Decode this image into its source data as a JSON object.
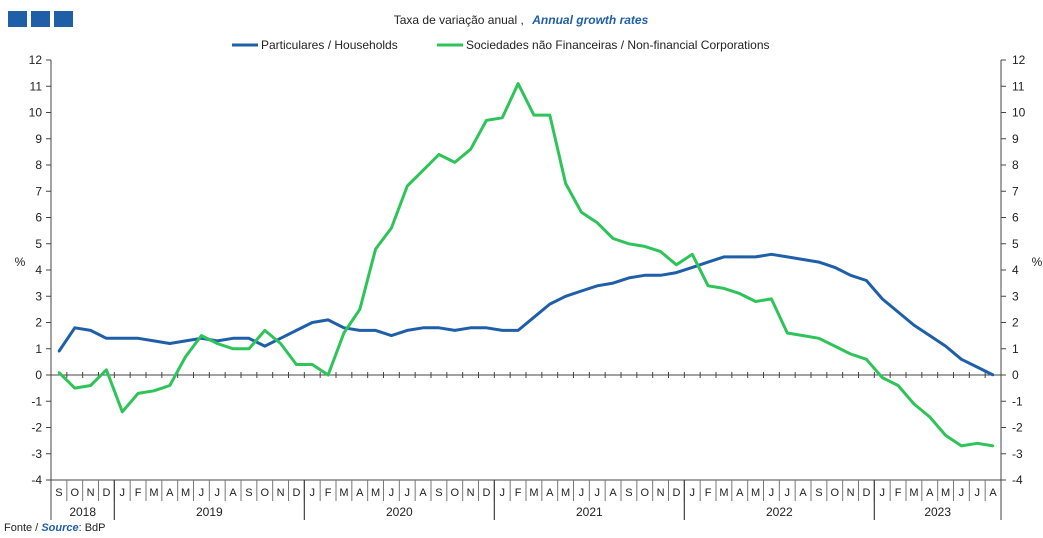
{
  "header": {
    "title_pt": "Taxa de variação anual ,",
    "title_en": "Annual growth rates"
  },
  "footer": {
    "source_prefix": "Fonte /",
    "source_en": "Source",
    "source_suffix": ": BdP"
  },
  "colors": {
    "logo": "#1f5fa8",
    "households": "#1f5fa8",
    "corporations": "#2ec45a"
  },
  "chart_data": {
    "type": "line",
    "title": "Taxa de variação anual , Annual growth rates",
    "ylabel_left": "%",
    "ylabel_right": "%",
    "ylim": [
      -4,
      12
    ],
    "yticks": [
      -4,
      -3,
      -2,
      -1,
      0,
      1,
      2,
      3,
      4,
      5,
      6,
      7,
      8,
      9,
      10,
      11,
      12
    ],
    "legend_position": "top-center",
    "grid": false,
    "categories": [
      "S",
      "O",
      "N",
      "D",
      "J",
      "F",
      "M",
      "A",
      "M",
      "J",
      "J",
      "A",
      "S",
      "O",
      "N",
      "D",
      "J",
      "F",
      "M",
      "A",
      "M",
      "J",
      "J",
      "A",
      "S",
      "O",
      "N",
      "D",
      "J",
      "F",
      "M",
      "A",
      "M",
      "J",
      "J",
      "A",
      "S",
      "O",
      "N",
      "D",
      "J",
      "F",
      "M",
      "A",
      "M",
      "J",
      "J",
      "A",
      "S",
      "O",
      "N",
      "D",
      "J",
      "F",
      "M",
      "A",
      "M",
      "J",
      "J",
      "A"
    ],
    "year_groups": [
      {
        "label": "2018",
        "start": 0,
        "count": 4
      },
      {
        "label": "2019",
        "start": 4,
        "count": 12
      },
      {
        "label": "2020",
        "start": 16,
        "count": 12
      },
      {
        "label": "2021",
        "start": 28,
        "count": 12
      },
      {
        "label": "2022",
        "start": 40,
        "count": 12
      },
      {
        "label": "2023",
        "start": 52,
        "count": 8
      }
    ],
    "series": [
      {
        "name": "Particulares / Households",
        "color": "#1f5fa8",
        "values": [
          0.9,
          1.8,
          1.7,
          1.4,
          1.4,
          1.4,
          1.3,
          1.2,
          1.3,
          1.4,
          1.3,
          1.4,
          1.4,
          1.1,
          1.4,
          1.7,
          2.0,
          2.1,
          1.8,
          1.7,
          1.7,
          1.5,
          1.7,
          1.8,
          1.8,
          1.7,
          1.8,
          1.8,
          1.7,
          1.7,
          2.2,
          2.7,
          3.0,
          3.2,
          3.4,
          3.5,
          3.7,
          3.8,
          3.8,
          3.9,
          4.1,
          4.3,
          4.5,
          4.5,
          4.5,
          4.6,
          4.5,
          4.4,
          4.3,
          4.1,
          3.8,
          3.6,
          2.9,
          2.4,
          1.9,
          1.5,
          1.1,
          0.6,
          0.3,
          0.0
        ]
      },
      {
        "name": "Sociedades não Financeiras / Non-financial Corporations",
        "color": "#2ec45a",
        "values": [
          0.1,
          -0.5,
          -0.4,
          0.2,
          -1.4,
          -0.7,
          -0.6,
          -0.4,
          0.7,
          1.5,
          1.2,
          1.0,
          1.0,
          1.7,
          1.2,
          0.4,
          0.4,
          0.0,
          1.6,
          2.5,
          4.8,
          5.6,
          7.2,
          7.8,
          8.4,
          8.1,
          8.6,
          9.7,
          9.8,
          11.1,
          9.9,
          9.9,
          7.3,
          6.2,
          5.8,
          5.2,
          5.0,
          4.9,
          4.7,
          4.2,
          4.6,
          3.4,
          3.3,
          3.1,
          2.8,
          2.9,
          1.6,
          1.5,
          1.4,
          1.1,
          0.8,
          0.6,
          -0.1,
          -0.4,
          -1.1,
          -1.6,
          -2.3,
          -2.7,
          -2.6,
          -2.7
        ]
      }
    ]
  }
}
